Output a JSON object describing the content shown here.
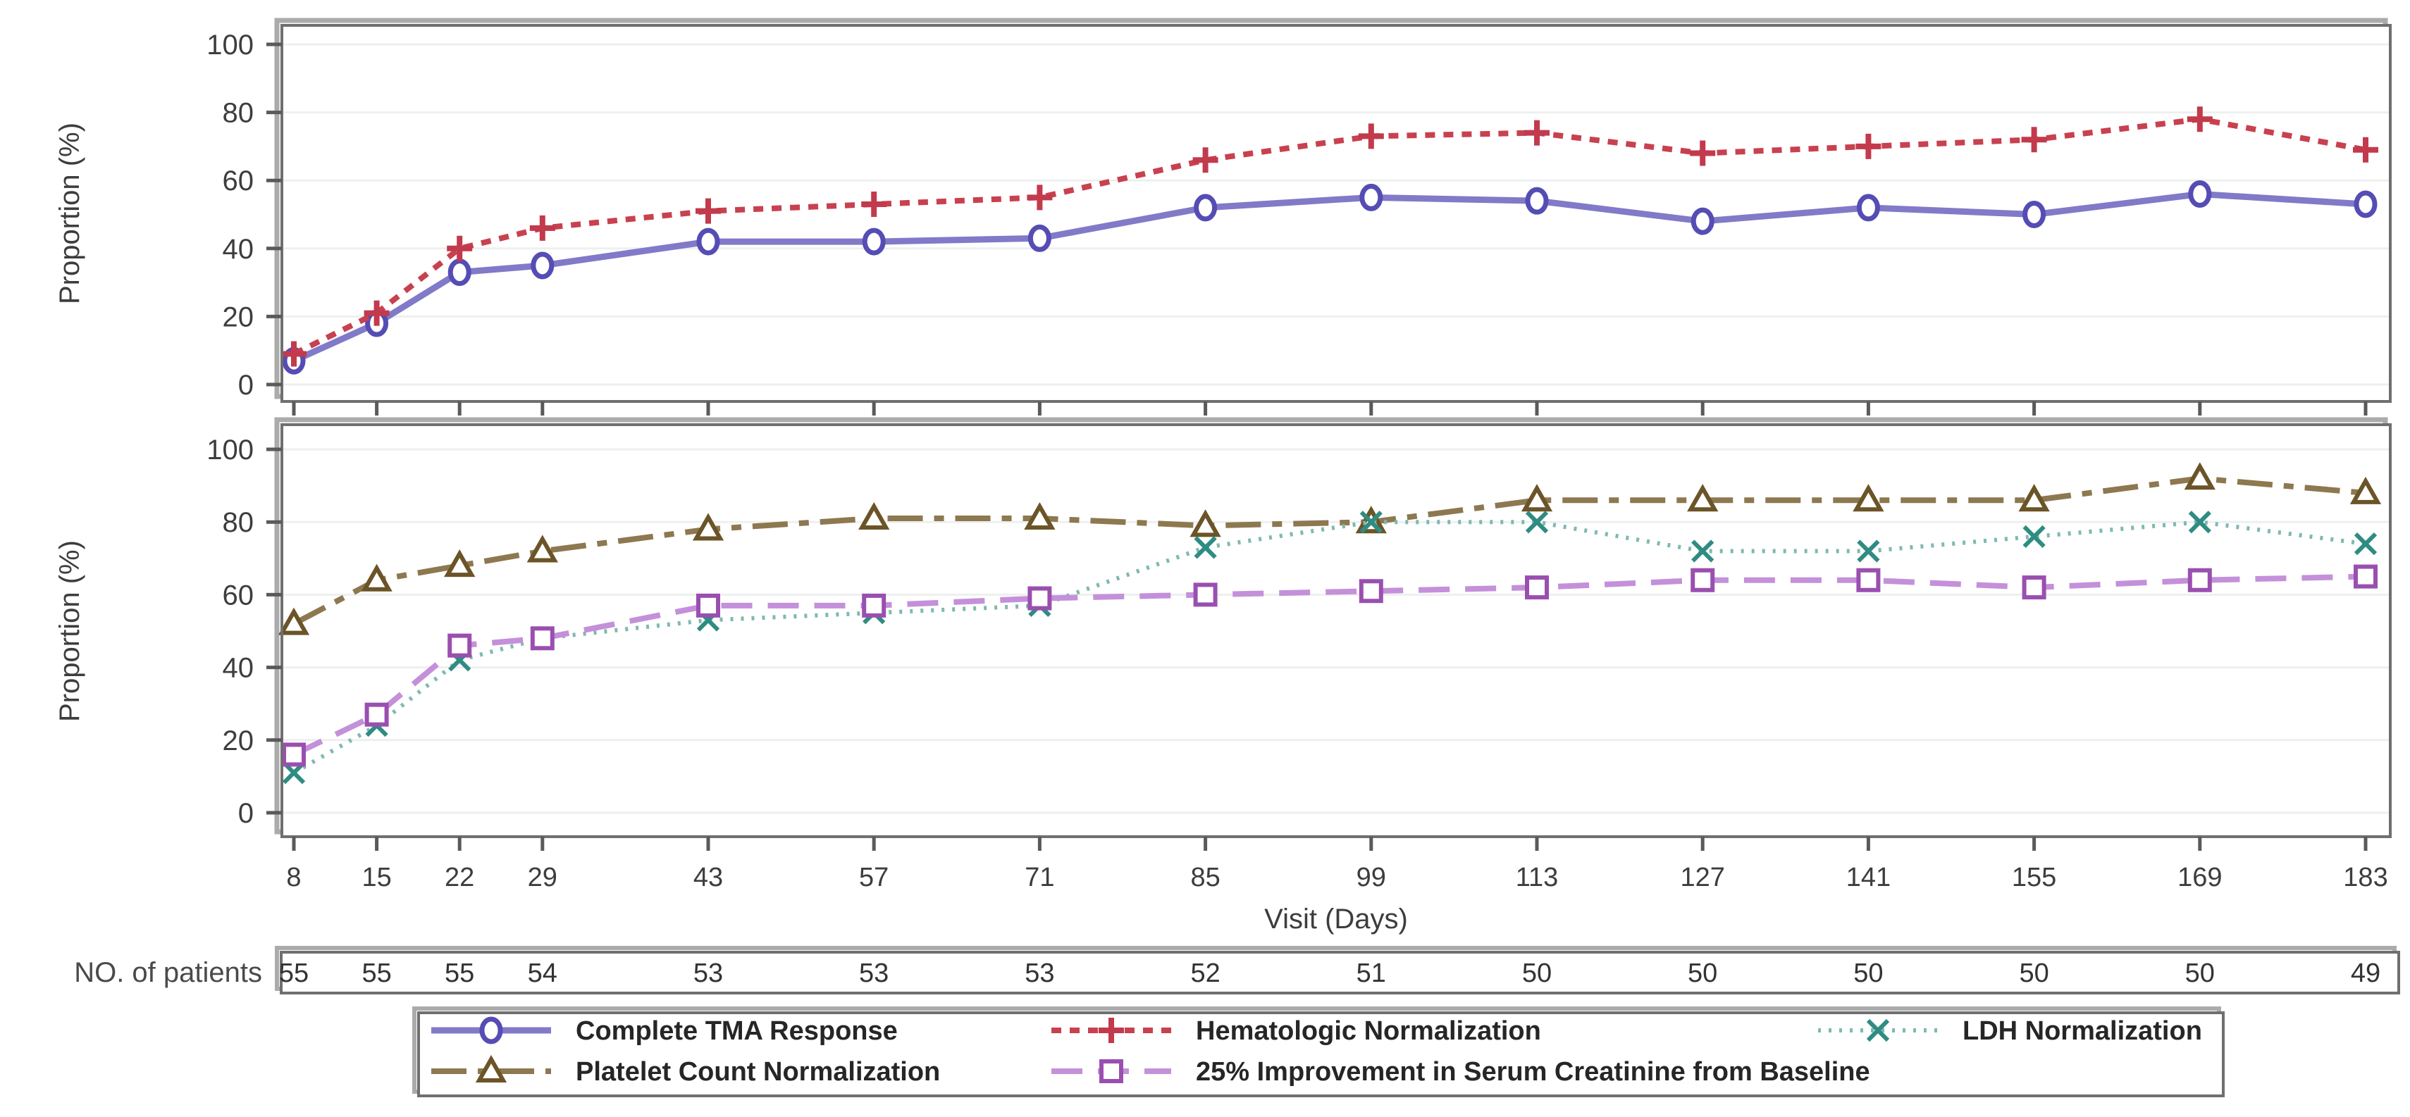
{
  "figure": {
    "y_axis_label": "Proportion (%)",
    "x_axis_label": "Visit (Days)",
    "y_ticks": [
      0,
      20,
      40,
      60,
      80,
      100
    ],
    "days": [
      8,
      15,
      22,
      29,
      43,
      57,
      71,
      85,
      99,
      113,
      127,
      141,
      155,
      169,
      183
    ],
    "patients": {
      "label": "NO. of patients",
      "values": [
        55,
        55,
        55,
        54,
        53,
        53,
        53,
        52,
        51,
        50,
        50,
        50,
        50,
        50,
        49
      ]
    }
  },
  "chart_data": [
    {
      "type": "line",
      "panel": "top",
      "x": [
        8,
        15,
        22,
        29,
        43,
        57,
        71,
        85,
        99,
        113,
        127,
        141,
        155,
        169,
        183
      ],
      "xlabel": "Visit (Days)",
      "ylabel": "Proportion (%)",
      "ylim": [
        0,
        100
      ],
      "grid": true,
      "series": [
        {
          "id": "tma",
          "name": "Complete TMA Response",
          "marker": "circle",
          "line_style": "solid",
          "color": "#817AC8",
          "marker_color": "#554DB4",
          "values": [
            7,
            18,
            33,
            35,
            42,
            42,
            43,
            52,
            55,
            54,
            48,
            52,
            50,
            56,
            53
          ]
        },
        {
          "id": "hema",
          "name": "Hematologic Normalization",
          "marker": "plus",
          "line_style": "dashed",
          "color": "#C8414F",
          "marker_color": "#C23A4C",
          "values": [
            9,
            21,
            40,
            46,
            51,
            53,
            55,
            66,
            73,
            74,
            68,
            70,
            72,
            78,
            69
          ]
        }
      ]
    },
    {
      "type": "line",
      "panel": "bottom",
      "x": [
        8,
        15,
        22,
        29,
        43,
        57,
        71,
        85,
        99,
        113,
        127,
        141,
        155,
        169,
        183
      ],
      "xlabel": "Visit (Days)",
      "ylabel": "Proportion (%)",
      "ylim": [
        0,
        100
      ],
      "grid": true,
      "series": [
        {
          "id": "platelet",
          "name": "Platelet Count Normalization",
          "marker": "triangle",
          "line_style": "dashdot",
          "color": "#8D7850",
          "marker_color": "#6B5427",
          "values": [
            52,
            64,
            68,
            72,
            78,
            81,
            81,
            79,
            80,
            86,
            86,
            86,
            86,
            92,
            88
          ]
        },
        {
          "id": "ldh",
          "name": "LDH Normalization",
          "marker": "x",
          "line_style": "dotted",
          "color": "#7FB9B1",
          "marker_color": "#2F8C82",
          "values": [
            11,
            24,
            42,
            48,
            53,
            55,
            57,
            73,
            80,
            80,
            72,
            72,
            76,
            80,
            74
          ]
        },
        {
          "id": "creatinine",
          "name": "25% Improvement in Serum Creatinine from Baseline",
          "marker": "square",
          "line_style": "longdash",
          "color": "#C490DA",
          "marker_color": "#9A4FB0",
          "values": [
            16,
            27,
            46,
            48,
            57,
            57,
            59,
            60,
            61,
            62,
            64,
            64,
            62,
            64,
            65
          ]
        }
      ]
    }
  ],
  "legend": {
    "position": "bottom",
    "border": true,
    "rows": [
      [
        "tma",
        "hema",
        "ldh"
      ],
      [
        "platelet",
        "creatinine"
      ]
    ]
  }
}
